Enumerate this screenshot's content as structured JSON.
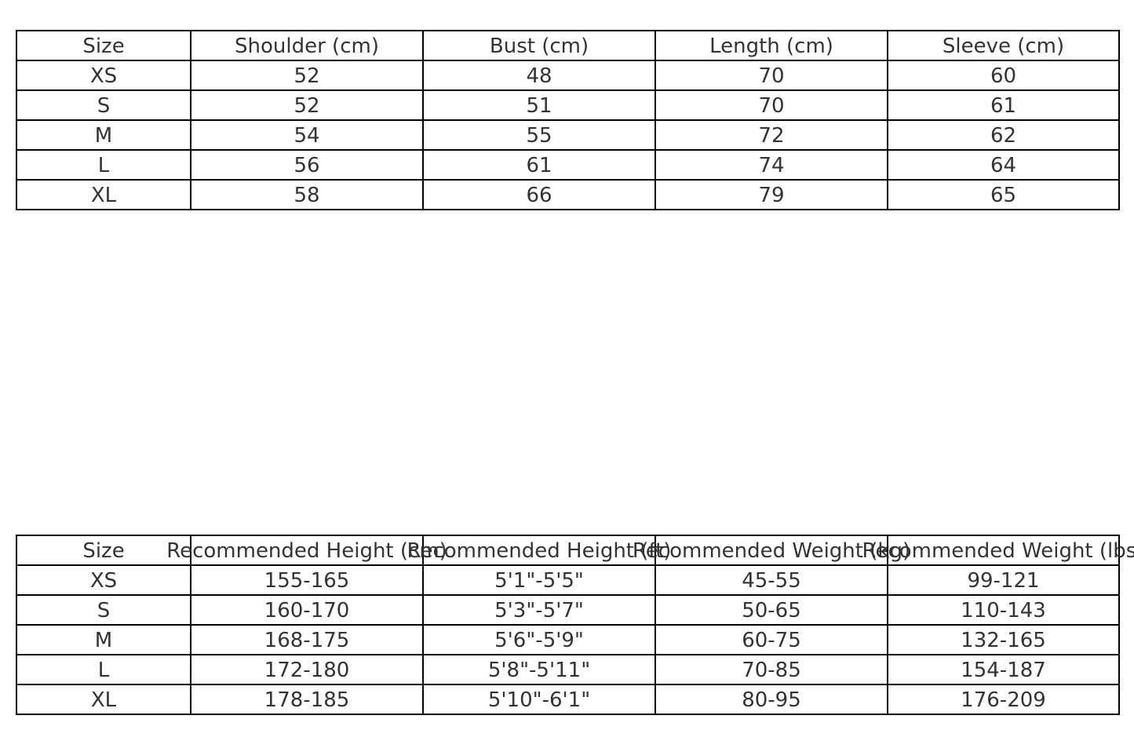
{
  "measurements_table": {
    "headers": [
      "Size",
      "Shoulder (cm)",
      "Bust (cm)",
      "Length (cm)",
      "Sleeve (cm)"
    ],
    "rows": [
      [
        "XS",
        "52",
        "48",
        "70",
        "60"
      ],
      [
        "S",
        "52",
        "51",
        "70",
        "61"
      ],
      [
        "M",
        "54",
        "55",
        "72",
        "62"
      ],
      [
        "L",
        "56",
        "61",
        "74",
        "64"
      ],
      [
        "XL",
        "58",
        "66",
        "79",
        "65"
      ]
    ]
  },
  "recommendation_table": {
    "headers": [
      "Size",
      "Recommended Height (cm)",
      "Recommended Height (ft)",
      "Recommended Weight (kg)",
      "Recommended Weight (lbs)"
    ],
    "rows": [
      [
        "XS",
        "155-165",
        "5'1\"-5'5\"",
        "45-55",
        "99-121"
      ],
      [
        "S",
        "160-170",
        "5'3\"-5'7\"",
        "50-65",
        "110-143"
      ],
      [
        "M",
        "168-175",
        "5'6\"-5'9\"",
        "60-75",
        "132-165"
      ],
      [
        "L",
        "172-180",
        "5'8\"-5'11\"",
        "70-85",
        "154-187"
      ],
      [
        "XL",
        "178-185",
        "5'10\"-6'1\"",
        "80-95",
        "176-209"
      ]
    ]
  }
}
